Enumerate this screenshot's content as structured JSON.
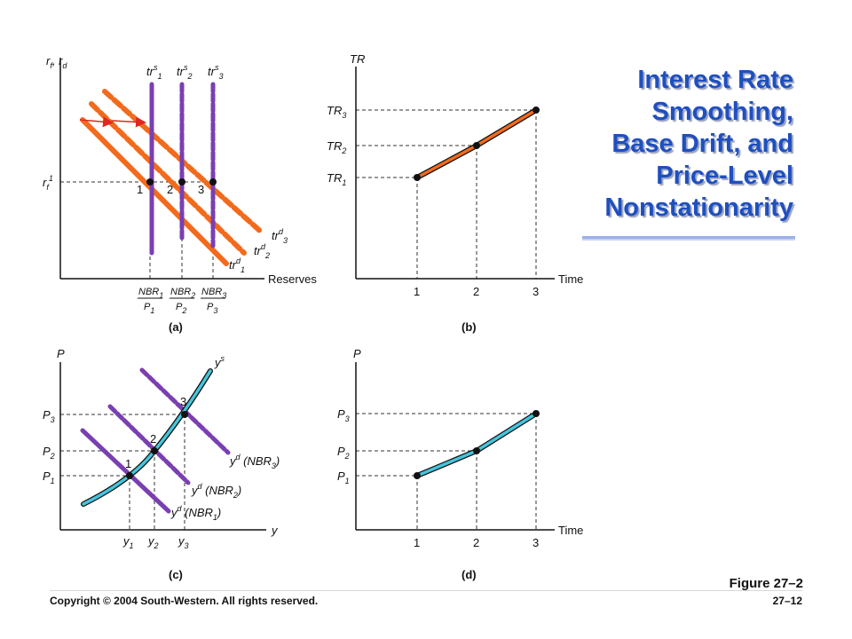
{
  "title_lines": [
    "Interest Rate",
    "Smoothing,",
    "Base Drift, and",
    "Price-Level",
    "Nonstationarity"
  ],
  "figure_label": "Figure 27–2",
  "copyright": "Copyright © 2004 South-Western. All rights reserved.",
  "page_number": "27–12",
  "colors": {
    "title": "#1f4fbf",
    "orange": "#f26b1d",
    "purple": "#7a3fb0",
    "cyan": "#45c4dc",
    "axis": "#111111"
  },
  "panels": {
    "a": {
      "label": "(a)",
      "y_axis": "r_f, r_d",
      "x_axis": "Reserves",
      "rate_label": "r_f^1",
      "supply_labels": [
        "tr^s_1",
        "tr^s_2",
        "tr^s_3"
      ],
      "demand_labels": [
        "tr^d_3",
        "tr^d_2",
        "tr^d_1"
      ],
      "points": [
        "1",
        "2",
        "3"
      ],
      "ticks": [
        {
          "num": "NBR_1",
          "den": "P_1"
        },
        {
          "num": "NBR_2",
          "den": "P_2"
        },
        {
          "num": "NBR_3",
          "den": "P_3"
        }
      ]
    },
    "b": {
      "label": "(b)",
      "y_axis": "TR",
      "x_axis": "Time",
      "y_ticks": [
        "TR_3",
        "TR_2",
        "TR_1"
      ],
      "x_ticks": [
        "1",
        "2",
        "3"
      ]
    },
    "c": {
      "label": "(c)",
      "y_axis": "P",
      "x_axis": "y",
      "supply_label": "y^s",
      "demand_labels": [
        "y^d (NBR_3)",
        "y^d (NBR_2)",
        "y^d (NBR_1)"
      ],
      "y_ticks": [
        "P_3",
        "P_2",
        "P_1"
      ],
      "x_ticks": [
        "y_1",
        "y_2",
        "y_3"
      ],
      "points": [
        "1",
        "2",
        "3"
      ]
    },
    "d": {
      "label": "(d)",
      "y_axis": "P",
      "x_axis": "Time",
      "y_ticks": [
        "P_3",
        "P_2",
        "P_1"
      ],
      "x_ticks": [
        "1",
        "2",
        "3"
      ]
    }
  }
}
